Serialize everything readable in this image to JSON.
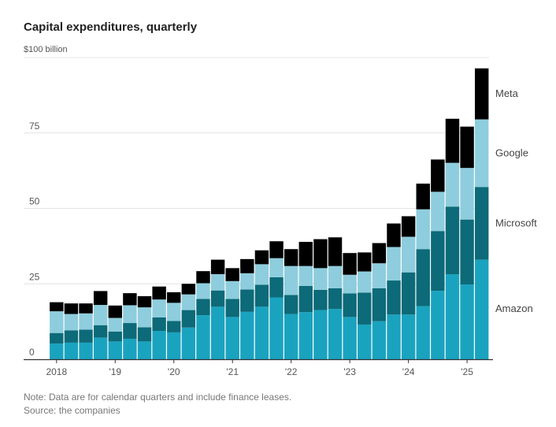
{
  "chart_data": {
    "type": "bar",
    "stacked": true,
    "title": "Capital expenditures, quarterly",
    "unit_label": "$100 billion",
    "ylim": [
      0,
      100
    ],
    "yticks": [
      0,
      25,
      50,
      75
    ],
    "grid": true,
    "legend_placement": "right (inline labels)",
    "xtick_labels": [
      "2018",
      "'19",
      "'20",
      "'21",
      "'22",
      "'23",
      "'24",
      "'25"
    ],
    "categories": [
      "2018 Q1",
      "2018 Q2",
      "2018 Q3",
      "2018 Q4",
      "2019 Q1",
      "2019 Q2",
      "2019 Q3",
      "2019 Q4",
      "2020 Q1",
      "2020 Q2",
      "2020 Q3",
      "2020 Q4",
      "2021 Q1",
      "2021 Q2",
      "2021 Q3",
      "2021 Q4",
      "2022 Q1",
      "2022 Q2",
      "2022 Q3",
      "2022 Q4",
      "2023 Q1",
      "2023 Q2",
      "2023 Q3",
      "2023 Q4",
      "2024 Q1",
      "2024 Q2",
      "2024 Q3",
      "2024 Q4",
      "2025 Q1",
      "2025 Q2"
    ],
    "series": [
      {
        "name": "Amazon",
        "color": "#1aa3bf",
        "values": [
          5.2,
          5.5,
          5.5,
          7.2,
          5.9,
          6.8,
          5.9,
          9.4,
          8.9,
          10.5,
          14.6,
          17.4,
          14.0,
          15.7,
          17.4,
          20.5,
          15.0,
          15.6,
          16.3,
          16.7,
          14.0,
          11.5,
          12.6,
          14.8,
          14.8,
          17.6,
          22.7,
          28.2,
          24.8,
          33.0
        ]
      },
      {
        "name": "Microsoft",
        "color": "#0d6a78",
        "values": [
          3.5,
          4.1,
          4.3,
          4.1,
          3.3,
          5.2,
          4.7,
          4.5,
          3.8,
          5.8,
          5.4,
          5.4,
          6.0,
          7.4,
          7.3,
          6.7,
          6.3,
          8.7,
          6.7,
          6.8,
          7.8,
          10.6,
          10.9,
          11.3,
          14.0,
          18.9,
          19.8,
          22.4,
          21.5,
          24.1
        ]
      },
      {
        "name": "Google",
        "color": "#8ecddd",
        "values": [
          7.2,
          5.4,
          5.4,
          6.7,
          4.5,
          5.9,
          6.6,
          5.9,
          6.0,
          5.2,
          5.2,
          5.4,
          5.9,
          5.4,
          6.8,
          6.3,
          9.6,
          6.6,
          7.2,
          7.4,
          6.2,
          7.0,
          8.3,
          11.1,
          11.8,
          13.2,
          13.0,
          14.5,
          17.1,
          22.4
        ]
      },
      {
        "name": "Meta",
        "color": "#000000",
        "values": [
          3.0,
          3.5,
          3.3,
          4.6,
          4.1,
          4.0,
          3.7,
          4.3,
          3.5,
          3.5,
          4.0,
          4.8,
          4.3,
          4.7,
          4.6,
          5.6,
          5.6,
          8.0,
          9.6,
          9.5,
          7.2,
          6.3,
          6.7,
          7.8,
          6.8,
          8.5,
          10.7,
          14.6,
          13.7,
          16.9
        ]
      }
    ],
    "note": "Note: Data are for calendar quarters and include finance leases.",
    "source": "Source: the companies"
  }
}
